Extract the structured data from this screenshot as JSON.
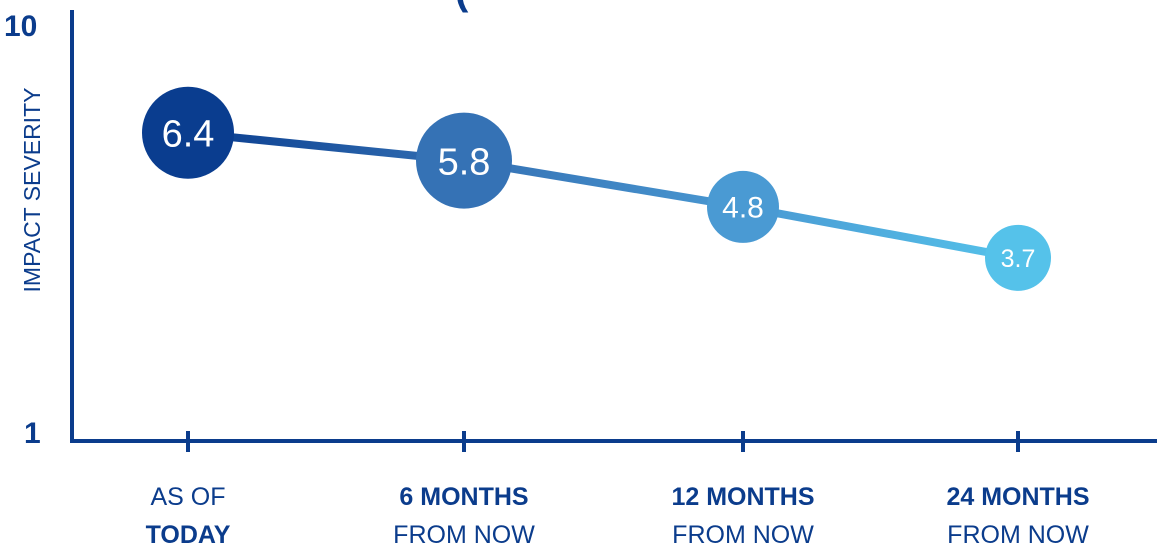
{
  "chart_data": {
    "type": "line",
    "title": "(",
    "ylabel": "IMPACT SEVERITY",
    "ylim": [
      1,
      10
    ],
    "yticks": [
      "1",
      "10"
    ],
    "categories": [
      {
        "line1": "AS OF",
        "line1_bold": false,
        "line2": "TODAY",
        "line2_bold": true
      },
      {
        "line1": "6 MONTHS",
        "line1_bold": true,
        "line2": "FROM NOW",
        "line2_bold": false
      },
      {
        "line1": "12 MONTHS",
        "line1_bold": true,
        "line2": "FROM NOW",
        "line2_bold": false
      },
      {
        "line1": "24 MONTHS",
        "line1_bold": true,
        "line2": "FROM NOW",
        "line2_bold": false
      }
    ],
    "values": [
      6.4,
      5.8,
      4.8,
      3.7
    ],
    "data_labels": [
      "6.4",
      "5.8",
      "4.8",
      "3.7"
    ],
    "colors": [
      "#0a3d8f",
      "#3572b5",
      "#4a9ad3",
      "#55c2ea"
    ],
    "axis_color": "#0b3c8c",
    "grid": false,
    "legend": "none"
  }
}
